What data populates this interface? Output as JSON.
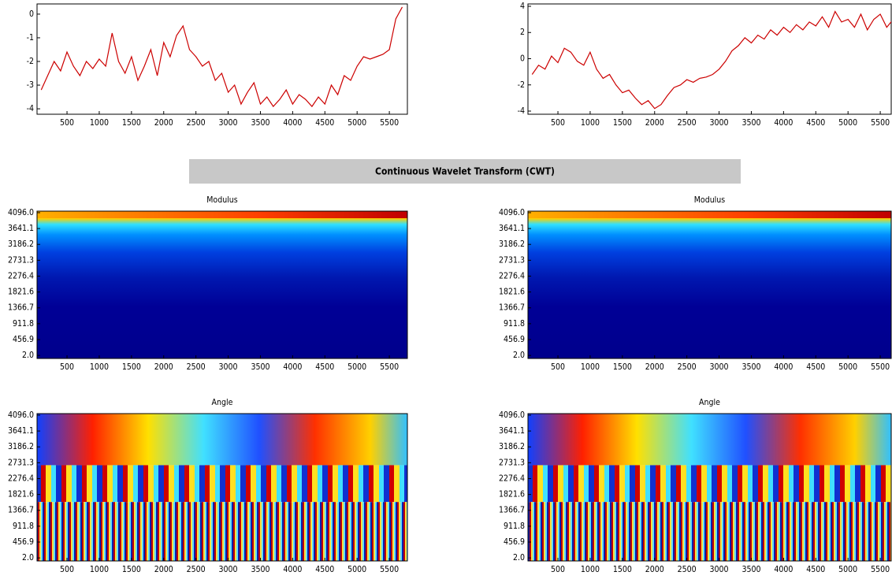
{
  "header": {
    "title": "Continuous Wavelet Transform (CWT)"
  },
  "chart_data": [
    {
      "type": "line",
      "xlim": [
        35,
        5780
      ],
      "ylim": [
        -4.23,
        0.43
      ],
      "xticks": [
        500,
        1000,
        1500,
        2000,
        2500,
        3000,
        3500,
        4000,
        4500,
        5000,
        5500
      ],
      "yticks": [
        -4,
        -3,
        -2,
        -1,
        0
      ],
      "x": [
        100,
        200,
        300,
        400,
        500,
        600,
        700,
        800,
        900,
        1000,
        1100,
        1200,
        1300,
        1400,
        1500,
        1600,
        1700,
        1800,
        1900,
        2000,
        2100,
        2200,
        2300,
        2400,
        2500,
        2600,
        2700,
        2800,
        2900,
        3000,
        3100,
        3200,
        3300,
        3400,
        3500,
        3600,
        3700,
        3800,
        3900,
        4000,
        4100,
        4200,
        4300,
        4400,
        4500,
        4600,
        4700,
        4800,
        4900,
        5000,
        5100,
        5200,
        5300,
        5400,
        5500,
        5600,
        5700
      ],
      "series": [
        {
          "color": "#cc0000",
          "values": [
            -3.2,
            -2.6,
            -2.0,
            -2.4,
            -1.6,
            -2.2,
            -2.6,
            -2.0,
            -2.3,
            -1.9,
            -2.2,
            -0.8,
            -2.0,
            -2.5,
            -1.8,
            -2.8,
            -2.2,
            -1.5,
            -2.6,
            -1.2,
            -1.8,
            -0.9,
            -0.5,
            -1.5,
            -1.8,
            -2.2,
            -2.0,
            -2.8,
            -2.5,
            -3.3,
            -3.0,
            -3.8,
            -3.3,
            -2.9,
            -3.8,
            -3.5,
            -3.9,
            -3.6,
            -3.2,
            -3.8,
            -3.4,
            -3.6,
            -3.9,
            -3.5,
            -3.8,
            -3.0,
            -3.4,
            -2.6,
            -2.8,
            -2.2,
            -1.8,
            -1.9,
            -1.8,
            -1.7,
            -1.5,
            -0.2,
            0.3
          ]
        }
      ]
    },
    {
      "type": "line",
      "xlim": [
        35,
        5670
      ],
      "ylim": [
        -4.24,
        4.18
      ],
      "xticks": [
        500,
        1000,
        1500,
        2000,
        2500,
        3000,
        3500,
        4000,
        4500,
        5000,
        5500
      ],
      "yticks": [
        -4,
        -2,
        0,
        2,
        4
      ],
      "x": [
        100,
        200,
        300,
        400,
        500,
        600,
        700,
        800,
        900,
        1000,
        1100,
        1200,
        1300,
        1400,
        1500,
        1600,
        1700,
        1800,
        1900,
        2000,
        2100,
        2200,
        2300,
        2400,
        2500,
        2600,
        2700,
        2800,
        2900,
        3000,
        3100,
        3200,
        3300,
        3400,
        3500,
        3600,
        3700,
        3800,
        3900,
        4000,
        4100,
        4200,
        4300,
        4400,
        4500,
        4600,
        4700,
        4800,
        4900,
        5000,
        5100,
        5200,
        5300,
        5400,
        5500,
        5600,
        5700
      ],
      "series": [
        {
          "color": "#cc0000",
          "values": [
            -1.2,
            -0.5,
            -0.8,
            0.2,
            -0.3,
            0.8,
            0.5,
            -0.2,
            -0.5,
            0.5,
            -0.8,
            -1.5,
            -1.2,
            -2.0,
            -2.6,
            -2.4,
            -3.0,
            -3.5,
            -3.2,
            -3.8,
            -3.5,
            -2.8,
            -2.2,
            -2.0,
            -1.6,
            -1.8,
            -1.5,
            -1.4,
            -1.2,
            -0.8,
            -0.2,
            0.6,
            1.0,
            1.6,
            1.2,
            1.8,
            1.5,
            2.2,
            1.8,
            2.4,
            2.0,
            2.6,
            2.2,
            2.8,
            2.5,
            3.2,
            2.4,
            3.6,
            2.8,
            3.0,
            2.4,
            3.4,
            2.2,
            3.0,
            3.4,
            2.4,
            3.0
          ]
        }
      ]
    },
    {
      "type": "heatmap",
      "title": "Modulus",
      "style": "modulus",
      "xlim": [
        35,
        5780
      ],
      "ylim": [
        -85,
        4140
      ],
      "xticks": [
        500,
        1000,
        1500,
        2000,
        2500,
        3000,
        3500,
        4000,
        4500,
        5000,
        5500
      ],
      "yticks": [
        {
          "value": 2,
          "label": "2.0"
        },
        456.9,
        911.8,
        1366.7,
        1821.6,
        2276.4,
        2731.3,
        3186.2,
        3641.1,
        {
          "value": 4096,
          "label": "4096.0"
        }
      ]
    },
    {
      "type": "heatmap",
      "title": "Modulus",
      "style": "modulus",
      "xlim": [
        35,
        5670
      ],
      "ylim": [
        -85,
        4140
      ],
      "xticks": [
        500,
        1000,
        1500,
        2000,
        2500,
        3000,
        3500,
        4000,
        4500,
        5000,
        5500
      ],
      "yticks": [
        {
          "value": 2,
          "label": "2.0"
        },
        456.9,
        911.8,
        1366.7,
        1821.6,
        2276.4,
        2731.3,
        3186.2,
        3641.1,
        {
          "value": 4096,
          "label": "4096.0"
        }
      ]
    },
    {
      "type": "heatmap",
      "title": "Angle",
      "style": "angle",
      "xlim": [
        35,
        5780
      ],
      "ylim": [
        -85,
        4140
      ],
      "xticks": [
        500,
        1000,
        1500,
        2000,
        2500,
        3000,
        3500,
        4000,
        4500,
        5000,
        5500
      ],
      "yticks": [
        {
          "value": 2,
          "label": "2.0"
        },
        456.9,
        911.8,
        1366.7,
        1821.6,
        2276.4,
        2731.3,
        3186.2,
        3641.1,
        {
          "value": 4096,
          "label": "4096.0"
        }
      ]
    },
    {
      "type": "heatmap",
      "title": "Angle",
      "style": "angle",
      "xlim": [
        35,
        5670
      ],
      "ylim": [
        -85,
        4140
      ],
      "xticks": [
        500,
        1000,
        1500,
        2000,
        2500,
        3000,
        3500,
        4000,
        4500,
        5000,
        5500
      ],
      "yticks": [
        {
          "value": 2,
          "label": "2.0"
        },
        456.9,
        911.8,
        1366.7,
        1821.6,
        2276.4,
        2731.3,
        3186.2,
        3641.1,
        {
          "value": 4096,
          "label": "4096.0"
        }
      ]
    }
  ]
}
